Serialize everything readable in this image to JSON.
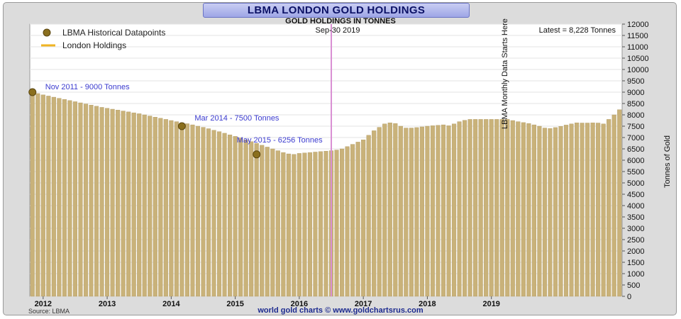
{
  "header": {
    "title": "LBMA LONDON GOLD HOLDINGS",
    "subtitle": "GOLD HOLDINGS IN TONNES",
    "date": "Sep-30  2019",
    "latest": "Latest = 8,228 Tonnes"
  },
  "footer": {
    "source": "Source: LBMA",
    "credit": "world gold charts © www.goldchartsrus.com"
  },
  "colors": {
    "bar": "#c9b27a",
    "bar_edge": "#b19a62",
    "marker": "#8a6f1e",
    "vline": "#d98fd3",
    "annotation": "#3b3bcf",
    "legend_line": "#f0b424"
  },
  "chart_data": {
    "type": "bar",
    "title": "LBMA LONDON GOLD HOLDINGS",
    "subtitle": "GOLD HOLDINGS IN TONNES",
    "ylabel": "Tonnes of Gold",
    "xlabel": "",
    "ylim": [
      0,
      12000
    ],
    "yticks": [
      0,
      500,
      1000,
      1500,
      2000,
      2500,
      3000,
      3500,
      4000,
      4500,
      5000,
      5500,
      6000,
      6500,
      7000,
      7500,
      8000,
      8500,
      9000,
      9500,
      10000,
      10500,
      11000,
      11500,
      12000
    ],
    "year_labels": [
      "2012",
      "2013",
      "2014",
      "2015",
      "2016",
      "2017",
      "2018",
      "2019"
    ],
    "start_month": "2011-11",
    "grid": true,
    "legend_position": "top-left",
    "legend": [
      "LBMA Historical Datapoints",
      "London Holdings"
    ],
    "vline_label": "LBMA Monthly Data Starts Here",
    "vline_month": "2016-07",
    "annotations": [
      {
        "label": "Nov 2011 - 9000 Tonnes",
        "month": "2011-11",
        "value": 9000
      },
      {
        "label": "Mar 2014 - 7500 Tonnes",
        "month": "2014-03",
        "value": 7500
      },
      {
        "label": "May 2015 - 6256 Tonnes",
        "month": "2015-05",
        "value": 6256
      }
    ],
    "values": [
      9000,
      8940,
      8880,
      8830,
      8780,
      8730,
      8680,
      8630,
      8580,
      8530,
      8480,
      8430,
      8380,
      8330,
      8290,
      8250,
      8210,
      8170,
      8130,
      8090,
      8050,
      8000,
      7950,
      7900,
      7850,
      7800,
      7750,
      7700,
      7650,
      7610,
      7560,
      7500,
      7450,
      7390,
      7320,
      7260,
      7190,
      7120,
      7050,
      6980,
      6900,
      6820,
      6740,
      6660,
      6580,
      6500,
      6420,
      6340,
      6280,
      6256,
      6300,
      6320,
      6340,
      6360,
      6380,
      6400,
      6420,
      6450,
      6500,
      6600,
      6700,
      6800,
      6900,
      7100,
      7300,
      7450,
      7600,
      7650,
      7620,
      7500,
      7420,
      7420,
      7440,
      7470,
      7500,
      7520,
      7540,
      7560,
      7520,
      7600,
      7700,
      7760,
      7800,
      7800,
      7800,
      7800,
      7800,
      7800,
      7800,
      7800,
      7750,
      7700,
      7660,
      7620,
      7560,
      7500,
      7420,
      7400,
      7440,
      7490,
      7550,
      7600,
      7650,
      7640,
      7640,
      7650,
      7640,
      7600,
      7800,
      8000,
      8228
    ]
  }
}
